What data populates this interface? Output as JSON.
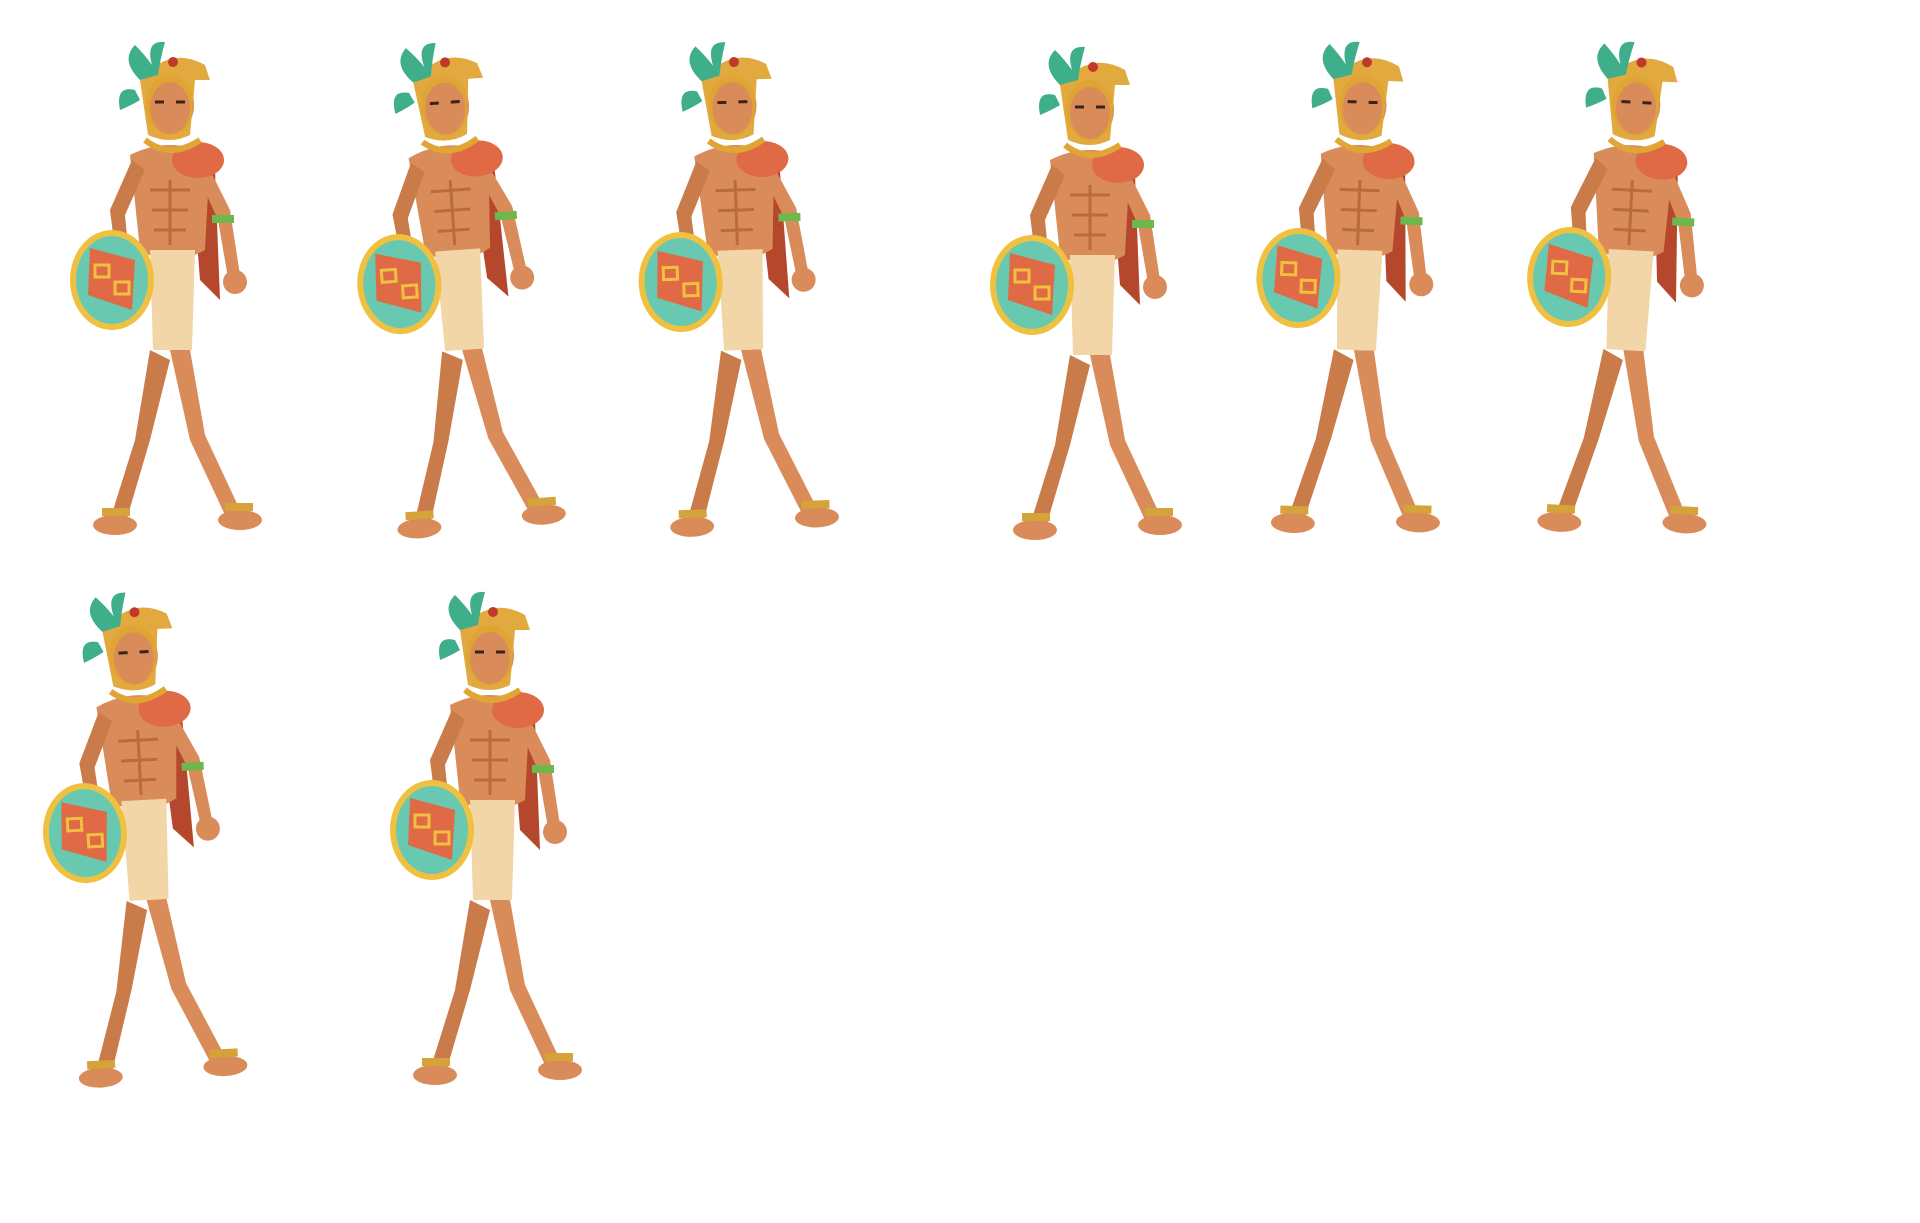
{
  "sheet": {
    "background": "#ffffff",
    "frame_count": 8,
    "rows": [
      6,
      2
    ]
  },
  "palette": {
    "skin": "#d98c5a",
    "skin_shadow": "#b96a3e",
    "helmet_gold": "#e0a534",
    "feather_green": "#3fae8a",
    "loincloth": "#f2d6a8",
    "cape_red": "#b5472c",
    "shield_teal": "#69c9b0",
    "shield_red": "#e06a45",
    "shield_rim": "#f0c040"
  },
  "frames": [
    {
      "id": "walk-1",
      "facing": "right"
    },
    {
      "id": "walk-2",
      "facing": "right"
    },
    {
      "id": "walk-3",
      "facing": "right"
    },
    {
      "id": "walk-4",
      "facing": "right"
    },
    {
      "id": "walk-5",
      "facing": "right"
    },
    {
      "id": "walk-6",
      "facing": "right"
    },
    {
      "id": "walk-7",
      "facing": "right"
    },
    {
      "id": "walk-8",
      "facing": "right"
    }
  ]
}
